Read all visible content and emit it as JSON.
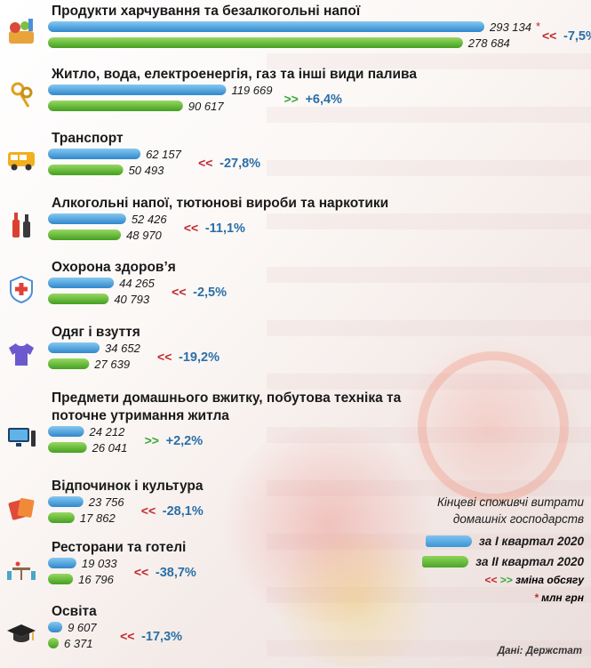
{
  "chart_data": {
    "type": "bar",
    "orientation": "horizontal",
    "title": "",
    "legend_title": "Кінцеві споживчі витрати домашніх господарств",
    "unit_note": "млн грн",
    "change_note": "зміна обсягу",
    "source": "Дані: Держстат",
    "series": [
      {
        "name": "за I квартал 2020",
        "color": "#3a95d6"
      },
      {
        "name": "за II квартал 2020",
        "color": "#4aa628"
      }
    ],
    "categories": [
      {
        "label": "Продукти харчування та безалкогольні напої",
        "q1": 293134,
        "q2": 278684,
        "q1_text": "293 134",
        "q2_text": "278 684",
        "change": "-7,5%",
        "icon": "food-basket-icon"
      },
      {
        "label": "Житло, вода, електроенергія, газ та інші види палива",
        "q1": 119669,
        "q2": 90617,
        "q1_text": "119 669",
        "q2_text": "90 617",
        "change": "+6,4%",
        "icon": "keys-icon"
      },
      {
        "label": "Транспорт",
        "q1": 62157,
        "q2": 50493,
        "q1_text": "62 157",
        "q2_text": "50 493",
        "change": "-27,8%",
        "icon": "bus-icon"
      },
      {
        "label": "Алкогольні напої, тютюнові вироби та наркотики",
        "q1": 52426,
        "q2": 48970,
        "q1_text": "52 426",
        "q2_text": "48 970",
        "change": "-11,1%",
        "icon": "bottles-icon"
      },
      {
        "label": "Охорона здоров’я",
        "q1": 44265,
        "q2": 40793,
        "q1_text": "44 265",
        "q2_text": "40 793",
        "change": "-2,5%",
        "icon": "health-shield-icon"
      },
      {
        "label": "Одяг і взуття",
        "q1": 34652,
        "q2": 27639,
        "q1_text": "34 652",
        "q2_text": "27 639",
        "change": "-19,2%",
        "icon": "tshirt-icon"
      },
      {
        "label": "Предмети домашнього вжитку, побутова техніка та поточне утримання житла",
        "label_line1": "Предмети домашнього вжитку, побутова техніка та",
        "label_line2": "поточне утримання житла",
        "q1": 24212,
        "q2": 26041,
        "q1_text": "24 212",
        "q2_text": "26 041",
        "change": "+2,2%",
        "icon": "computer-icon"
      },
      {
        "label": "Відпочинок і культура",
        "q1": 23756,
        "q2": 17862,
        "q1_text": "23 756",
        "q2_text": "17 862",
        "change": "-28,1%",
        "icon": "tickets-icon"
      },
      {
        "label": "Ресторани та готелі",
        "q1": 19033,
        "q2": 16796,
        "q1_text": "19 033",
        "q2_text": "16 796",
        "change": "-38,7%",
        "icon": "restaurant-table-icon"
      },
      {
        "label": "Освіта",
        "q1": 9607,
        "q2": 6371,
        "q1_text": "9 607",
        "q2_text": "6 371",
        "change": "-17,3%",
        "icon": "graduation-cap-icon"
      }
    ]
  },
  "legend": {
    "title_line1": "Кінцеві споживчі витрати",
    "title_line2": "домашніх господарств",
    "q1_label": "за I квартал 2020",
    "q2_label": "за II квартал 2020",
    "change_label": "зміна обсягу",
    "unit_label": "млн грн",
    "arrows_down": "<<",
    "arrows_up": ">>",
    "star": "*"
  },
  "colors": {
    "blue": "#3a95d6",
    "green": "#4aa628",
    "down": "#c0282d",
    "up": "#3aa63a",
    "change_text": "#2a6fa8"
  }
}
